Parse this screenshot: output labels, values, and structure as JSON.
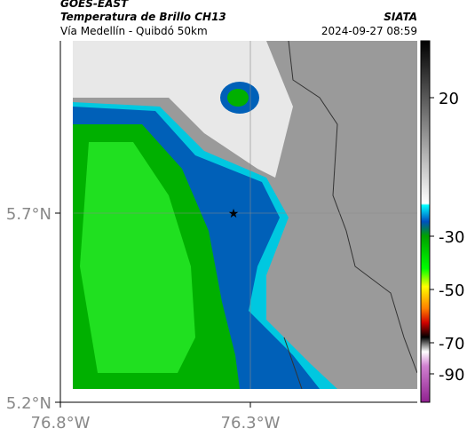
{
  "header": {
    "source": "GOES-EAST",
    "title": "Temperatura de Brillo CH13",
    "subtitle": "Vía Medellín - Quibdó 50km",
    "credit": "SIATA",
    "timestamp": "2024-09-27 08:59"
  },
  "map": {
    "lat_labels": [
      "5.7°N",
      "5.2°N"
    ],
    "lon_labels": [
      "76.8°W",
      "76.3°W"
    ]
  },
  "colorbar": {
    "labels": [
      "20",
      "-30",
      "-50",
      "-70",
      "-90"
    ]
  }
}
